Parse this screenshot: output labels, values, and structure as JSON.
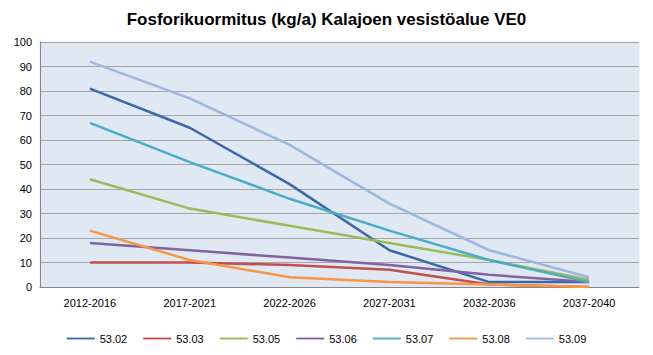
{
  "chart_data": {
    "type": "line",
    "title": "Fosforikuormitus (kg/a) Kalajoen vesistöalue VE0",
    "categories": [
      "2012-2016",
      "2017-2021",
      "2022-2026",
      "2027-2031",
      "2032-2036",
      "2037-2040"
    ],
    "series": [
      {
        "name": "53.02",
        "color": "#3c67a8",
        "values": [
          81,
          65,
          42,
          15,
          2,
          2
        ]
      },
      {
        "name": "53.03",
        "color": "#c0504d",
        "values": [
          10,
          10,
          9,
          7,
          1,
          0
        ]
      },
      {
        "name": "53.05",
        "color": "#9bbb59",
        "values": [
          44,
          32,
          25,
          18,
          11,
          3
        ]
      },
      {
        "name": "53.06",
        "color": "#8064a2",
        "values": [
          18,
          15,
          12,
          9,
          5,
          2
        ]
      },
      {
        "name": "53.07",
        "color": "#4bacc6",
        "values": [
          67,
          51,
          36,
          23,
          11,
          2
        ]
      },
      {
        "name": "53.08",
        "color": "#f79646",
        "values": [
          23,
          11,
          4,
          2,
          1,
          0
        ]
      },
      {
        "name": "53.09",
        "color": "#9db7e0",
        "values": [
          92,
          77,
          58,
          34,
          15,
          4
        ]
      }
    ],
    "ylim": [
      0,
      100
    ],
    "yticks": [
      0,
      10,
      20,
      30,
      40,
      50,
      60,
      70,
      80,
      90,
      100
    ],
    "grid": true,
    "legend": "bottom",
    "marker": "none",
    "line_style": "solid"
  }
}
